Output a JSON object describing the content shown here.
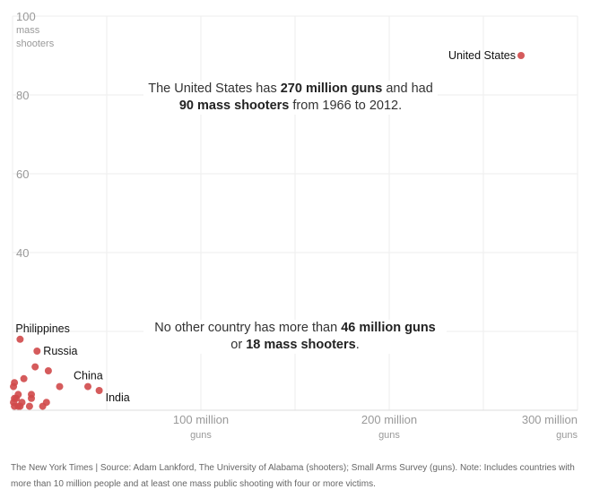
{
  "chart_data": {
    "type": "scatter",
    "title": "",
    "xlabel": "guns",
    "ylabel": "mass shooters",
    "xlim": [
      0,
      300
    ],
    "ylim": [
      0,
      100
    ],
    "x_ticks": [
      {
        "value": 100,
        "label": "100 million",
        "sub": "guns"
      },
      {
        "value": 200,
        "label": "200 million",
        "sub": "guns"
      },
      {
        "value": 300,
        "label": "300 million",
        "sub": "guns"
      }
    ],
    "y_ticks": [
      {
        "value": 100,
        "label": "100",
        "sub1": "mass",
        "sub2": "shooters"
      },
      {
        "value": 80,
        "label": "80"
      },
      {
        "value": 60,
        "label": "60"
      },
      {
        "value": 40,
        "label": "40"
      }
    ],
    "grid": true,
    "point_color": "#d0494a",
    "points": [
      {
        "x": 270,
        "y": 90,
        "label": "United States"
      },
      {
        "x": 4,
        "y": 18,
        "label": "Philippines"
      },
      {
        "x": 13,
        "y": 15,
        "label": "Russia"
      },
      {
        "x": 40,
        "y": 6,
        "label": "China"
      },
      {
        "x": 46,
        "y": 5,
        "label": "India"
      },
      {
        "x": 12,
        "y": 11
      },
      {
        "x": 19,
        "y": 10
      },
      {
        "x": 6,
        "y": 8
      },
      {
        "x": 1,
        "y": 7
      },
      {
        "x": 0.5,
        "y": 6
      },
      {
        "x": 25,
        "y": 6
      },
      {
        "x": 3,
        "y": 4
      },
      {
        "x": 10,
        "y": 4
      },
      {
        "x": 1,
        "y": 3
      },
      {
        "x": 2,
        "y": 3
      },
      {
        "x": 10,
        "y": 3
      },
      {
        "x": 18,
        "y": 2
      },
      {
        "x": 16,
        "y": 1
      },
      {
        "x": 9,
        "y": 1
      },
      {
        "x": 3,
        "y": 1
      },
      {
        "x": 1,
        "y": 1
      },
      {
        "x": 0.5,
        "y": 2
      },
      {
        "x": 5,
        "y": 2
      },
      {
        "x": 4,
        "y": 1
      }
    ]
  },
  "annotations": {
    "top": {
      "t1": "The United States has ",
      "b1": "270 million guns",
      "t2": " and had",
      "b2": "90 mass shooters",
      "t3": " from 1966 to 2012."
    },
    "bottom": {
      "t1": "No other country has more than ",
      "b1": "46 million guns",
      "t2": "or ",
      "b2": "18 mass shooters",
      "t3": "."
    }
  },
  "footer": "The New York Times  |  Source: Adam Lankford, The University of Alabama (shooters); Small Arms Survey (guns). Note: Includes countries with more than 10 million people and at least one mass public shooting with four or more victims."
}
